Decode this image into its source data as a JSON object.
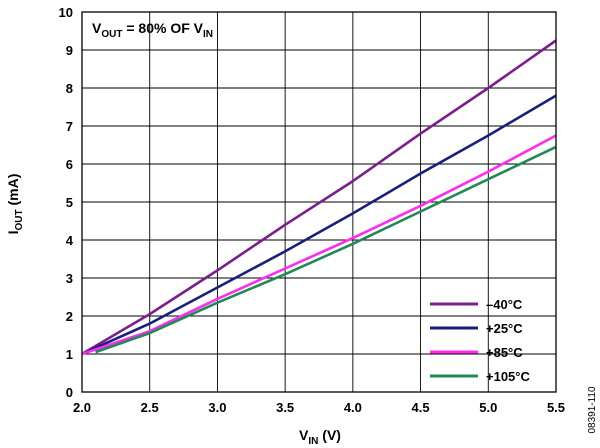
{
  "chart_data": {
    "type": "line",
    "xlabel": {
      "main": "V",
      "sub": "IN",
      "unit": " (V)"
    },
    "ylabel": {
      "main": "I",
      "sub": "OUT",
      "unit": " (mA)"
    },
    "xlim": [
      2.0,
      5.5
    ],
    "ylim": [
      0,
      10
    ],
    "x_ticks": [
      "2.0",
      "2.5",
      "3.0",
      "3.5",
      "4.0",
      "4.5",
      "5.0",
      "5.5"
    ],
    "y_ticks": [
      "0",
      "1",
      "2",
      "3",
      "4",
      "5",
      "6",
      "7",
      "8",
      "9",
      "10"
    ],
    "grid": true,
    "legend_position": "bottom-right",
    "annotation": {
      "parts": [
        {
          "text": "V",
          "sub": false
        },
        {
          "text": "OUT",
          "sub": true
        },
        {
          "text": " = 80% OF V",
          "sub": false
        },
        {
          "text": "IN",
          "sub": true
        }
      ]
    },
    "series": [
      {
        "name": "–40°C",
        "color": "#7b1f8c",
        "x": [
          2.0,
          2.5,
          3.0,
          3.5,
          4.0,
          4.5,
          5.0,
          5.5
        ],
        "y": [
          1.0,
          2.05,
          3.2,
          4.4,
          5.55,
          6.8,
          8.0,
          9.25
        ]
      },
      {
        "name": "+25°C",
        "color": "#1a1f7a",
        "x": [
          2.0,
          2.5,
          3.0,
          3.5,
          4.0,
          4.5,
          5.0,
          5.5
        ],
        "y": [
          1.0,
          1.8,
          2.75,
          3.7,
          4.7,
          5.75,
          6.75,
          7.8
        ]
      },
      {
        "name": "+85°C",
        "color": "#ff2bf0",
        "x": [
          2.0,
          2.5,
          3.0,
          3.5,
          4.0,
          4.5,
          5.0,
          5.5
        ],
        "y": [
          1.0,
          1.6,
          2.45,
          3.25,
          4.05,
          4.9,
          5.8,
          6.75
        ]
      },
      {
        "name": "+105°C",
        "color": "#1f8a55",
        "x": [
          2.1,
          2.5,
          3.0,
          3.5,
          4.0,
          4.5,
          5.0,
          5.5
        ],
        "y": [
          1.05,
          1.55,
          2.35,
          3.1,
          3.9,
          4.75,
          5.6,
          6.45
        ]
      }
    ],
    "figure_id": "08391-110"
  }
}
